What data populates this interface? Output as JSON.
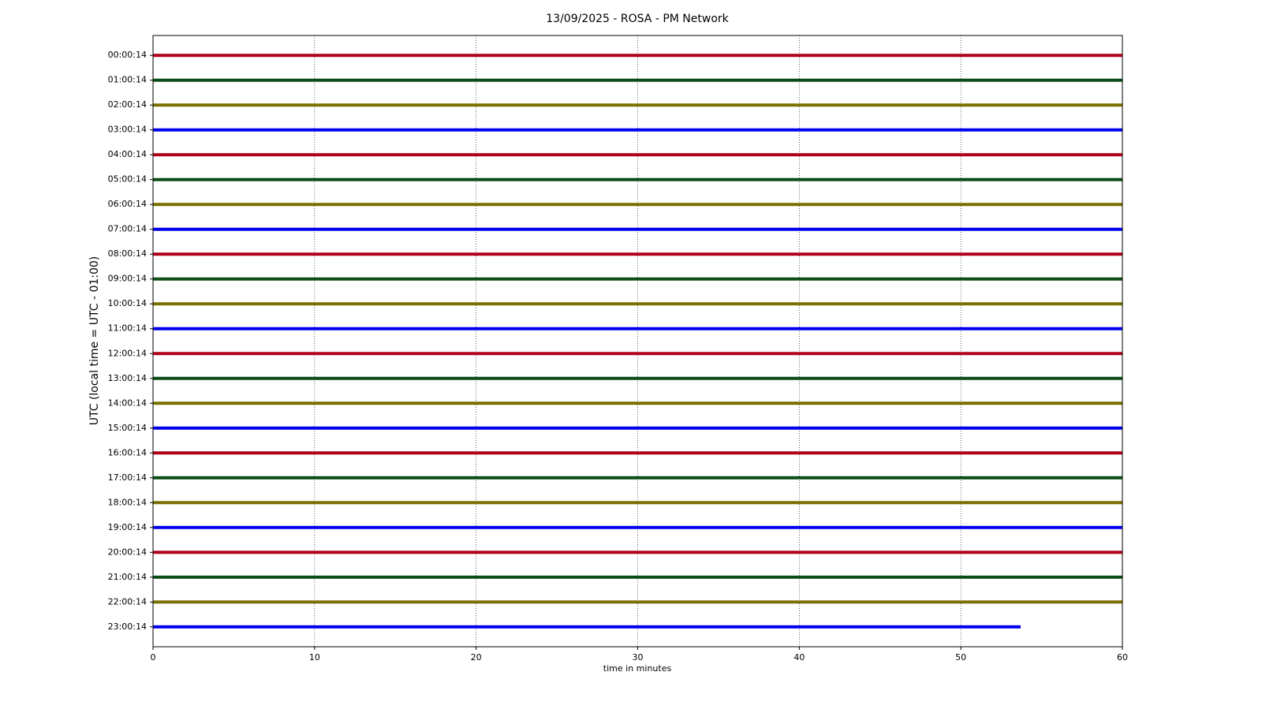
{
  "chart_data": {
    "type": "helicorder",
    "title": "13/09/2025 - ROSA - PM Network",
    "x_label": "time in minutes",
    "y_label": "UTC (local time = UTC - 01:00)",
    "categories": [
      "00:00:14",
      "01:00:14",
      "02:00:14",
      "03:00:14",
      "04:00:14",
      "05:00:14",
      "06:00:14",
      "07:00:14",
      "08:00:14",
      "09:00:14",
      "10:00:14",
      "11:00:14",
      "12:00:14",
      "13:00:14",
      "14:00:14",
      "15:00:14",
      "16:00:14",
      "17:00:14",
      "18:00:14",
      "19:00:14",
      "20:00:14",
      "21:00:14",
      "22:00:14",
      "23:00:14"
    ],
    "values": [
      60,
      60,
      60,
      60,
      60,
      60,
      60,
      60,
      60,
      60,
      60,
      60,
      60,
      60,
      60,
      60,
      60,
      60,
      60,
      60,
      60,
      60,
      60,
      53.7
    ],
    "colors": [
      "#b0001a",
      "#0b4d16",
      "#7a7000",
      "#0000ee"
    ],
    "xlim": [
      0,
      60
    ],
    "xticks": [
      0,
      10,
      20,
      30,
      40,
      50,
      60
    ],
    "grid": true
  }
}
